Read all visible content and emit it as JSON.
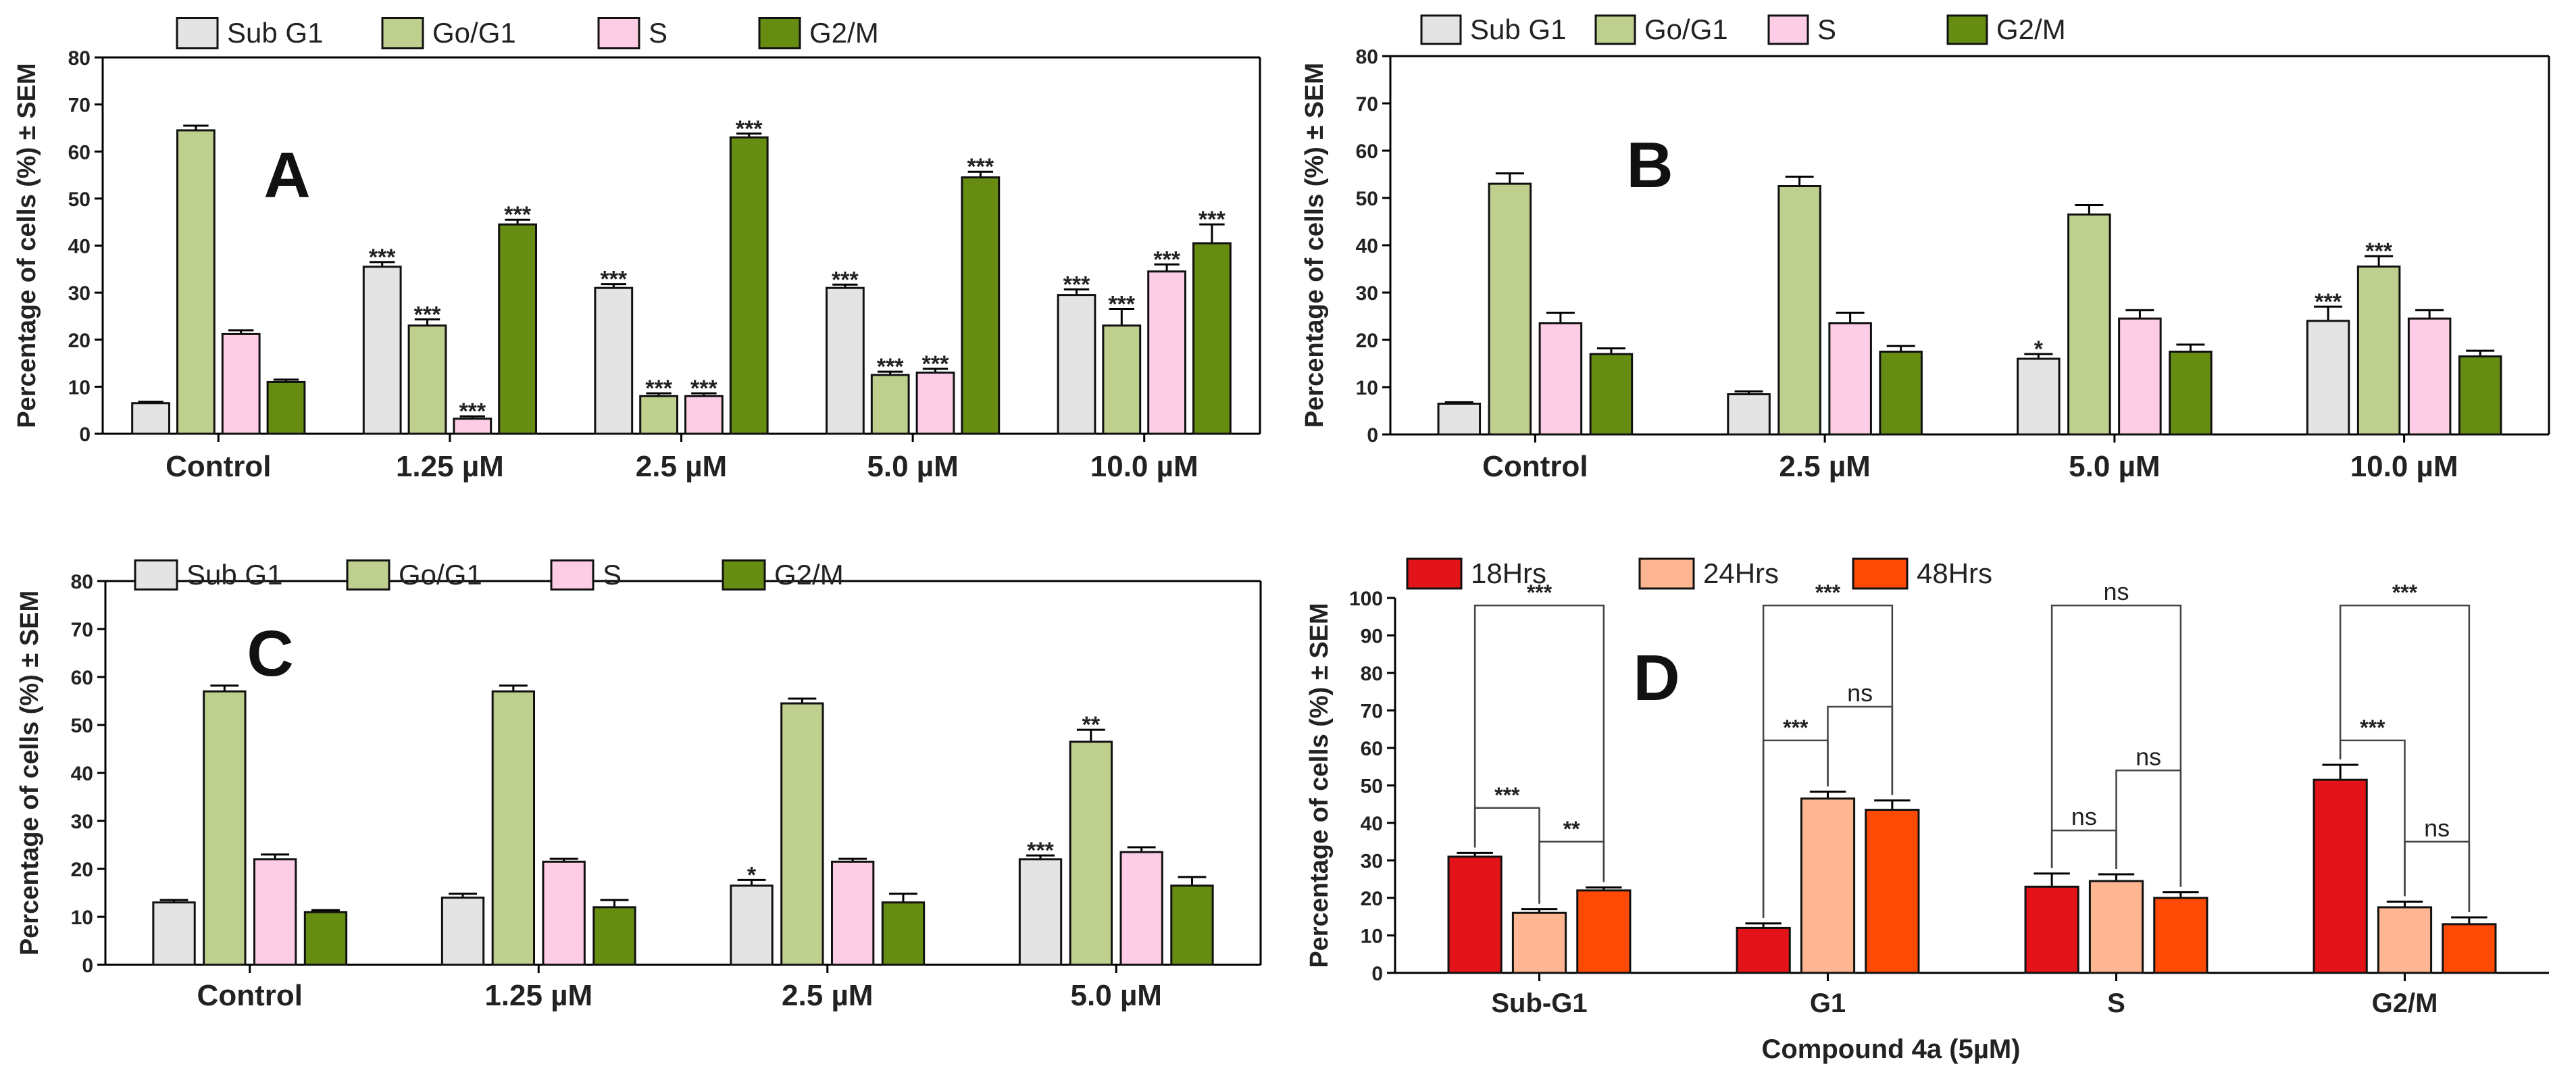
{
  "colors": {
    "sub_g1": "#e4e4e4",
    "go_g1": "#bfcf8e",
    "s": "#fccde4",
    "g2m": "#668d12",
    "h18": "#e31419",
    "h24": "#fdb691",
    "h48": "#ff4a06"
  },
  "chart_data": [
    {
      "id": "A",
      "type": "bar",
      "panel_label": "A",
      "ylabel": "Percentage of cells (%) ± SEM",
      "ylim": [
        0,
        80
      ],
      "yticks": [
        0,
        10,
        20,
        30,
        40,
        50,
        60,
        70,
        80
      ],
      "categories": [
        "Control",
        "1.25 µM",
        "2.5 µM",
        "5.0 µM",
        "10.0 µM"
      ],
      "legend": [
        "Sub G1",
        "Go/G1",
        "S",
        "G2/M"
      ],
      "series": [
        {
          "name": "Sub G1",
          "color_key": "sub_g1",
          "values": [
            6.5,
            35.5,
            31,
            31,
            29.5
          ],
          "errors": [
            0.3,
            1,
            0.8,
            0.7,
            1.2
          ],
          "sig": [
            "",
            "***",
            "***",
            "***",
            "***"
          ]
        },
        {
          "name": "Go/G1",
          "color_key": "go_g1",
          "values": [
            64.5,
            23,
            8,
            12.5,
            23
          ],
          "errors": [
            1,
            1.3,
            0.6,
            0.7,
            3.5
          ],
          "sig": [
            "",
            "***",
            "***",
            "***",
            "***"
          ]
        },
        {
          "name": "S",
          "color_key": "s",
          "values": [
            21.2,
            3.2,
            8,
            13,
            34.5
          ],
          "errors": [
            0.8,
            0.5,
            0.6,
            0.8,
            1.5
          ],
          "sig": [
            "",
            "***",
            "***",
            "***",
            "***"
          ]
        },
        {
          "name": "G2/M",
          "color_key": "g2m",
          "values": [
            11,
            44.5,
            63,
            54.5,
            40.5
          ],
          "errors": [
            0.5,
            1,
            0.8,
            1.2,
            4
          ],
          "sig": [
            "",
            "***",
            "***",
            "***",
            "***"
          ]
        }
      ]
    },
    {
      "id": "B",
      "type": "bar",
      "panel_label": "B",
      "ylabel": "Percentage of cells (%) ± SEM",
      "ylim": [
        0,
        80
      ],
      "yticks": [
        0,
        10,
        20,
        30,
        40,
        50,
        60,
        70,
        80
      ],
      "categories": [
        "Control",
        "2.5 µM",
        "5.0 µM",
        "10.0 µM"
      ],
      "legend": [
        "Sub G1",
        "Go/G1",
        "S",
        "G2/M"
      ],
      "series": [
        {
          "name": "Sub G1",
          "color_key": "sub_g1",
          "values": [
            6.5,
            8.5,
            16,
            24
          ],
          "errors": [
            0.3,
            0.6,
            1,
            3
          ],
          "sig": [
            "",
            "",
            "*",
            "***"
          ]
        },
        {
          "name": "Go/G1",
          "color_key": "go_g1",
          "values": [
            53,
            52.5,
            46.5,
            35.5
          ],
          "errors": [
            2.2,
            2,
            2,
            2.2
          ],
          "sig": [
            "",
            "",
            "",
            "***"
          ]
        },
        {
          "name": "S",
          "color_key": "s",
          "values": [
            23.5,
            23.5,
            24.5,
            24.5
          ],
          "errors": [
            2.2,
            2.2,
            1.8,
            1.8
          ],
          "sig": [
            "",
            "",
            "",
            ""
          ]
        },
        {
          "name": "G2/M",
          "color_key": "g2m",
          "values": [
            17,
            17.5,
            17.5,
            16.5
          ],
          "errors": [
            1.2,
            1.2,
            1.5,
            1.2
          ],
          "sig": [
            "",
            "",
            "",
            ""
          ]
        }
      ]
    },
    {
      "id": "C",
      "type": "bar",
      "panel_label": "C",
      "ylabel": "Percentage of cells (%) ± SEM",
      "ylim": [
        0,
        80
      ],
      "yticks": [
        0,
        10,
        20,
        30,
        40,
        50,
        60,
        70,
        80
      ],
      "categories": [
        "Control",
        "1.25 µM",
        "2.5 µM",
        "5.0 µM"
      ],
      "legend": [
        "Sub G1",
        "Go/G1",
        "S",
        "G2/M"
      ],
      "series": [
        {
          "name": "Sub G1",
          "color_key": "sub_g1",
          "values": [
            13,
            14,
            16.5,
            22
          ],
          "errors": [
            0.5,
            0.8,
            1.2,
            0.8
          ],
          "sig": [
            "",
            "",
            "*",
            "***"
          ]
        },
        {
          "name": "Go/G1",
          "color_key": "go_g1",
          "values": [
            57,
            57,
            54.5,
            46.5
          ],
          "errors": [
            1.2,
            1.2,
            1,
            2.5
          ],
          "sig": [
            "",
            "",
            "",
            "**"
          ]
        },
        {
          "name": "S",
          "color_key": "s",
          "values": [
            22,
            21.5,
            21.5,
            23.5
          ],
          "errors": [
            1,
            0.6,
            0.6,
            1
          ],
          "sig": [
            "",
            "",
            "",
            ""
          ]
        },
        {
          "name": "G2/M",
          "color_key": "g2m",
          "values": [
            11,
            12,
            13,
            16.5
          ],
          "errors": [
            0.4,
            1.5,
            1.8,
            1.8
          ],
          "sig": [
            "",
            "",
            "",
            ""
          ]
        }
      ]
    },
    {
      "id": "D",
      "type": "bar",
      "panel_label": "D",
      "ylabel": "Percentage of cells (%) ± SEM",
      "xlabel": "Compound 4a (5µM)",
      "ylim": [
        0,
        100
      ],
      "yticks": [
        0,
        10,
        20,
        30,
        40,
        50,
        60,
        70,
        80,
        90,
        100
      ],
      "categories": [
        "Sub-G1",
        "G1",
        "S",
        "G2/M"
      ],
      "legend": [
        "18Hrs",
        "24Hrs",
        "48Hrs"
      ],
      "series": [
        {
          "name": "18Hrs",
          "color_key": "h18",
          "values": [
            31,
            12,
            23,
            51.5
          ],
          "errors": [
            1,
            1.2,
            3.5,
            4
          ]
        },
        {
          "name": "24Hrs",
          "color_key": "h24",
          "values": [
            16,
            46.5,
            24.5,
            17.5
          ],
          "errors": [
            1,
            1.8,
            1.8,
            1.5
          ]
        },
        {
          "name": "48Hrs",
          "color_key": "h48",
          "values": [
            22,
            43.5,
            20,
            13
          ],
          "errors": [
            0.8,
            2.5,
            1.5,
            1.8
          ]
        }
      ],
      "comparisons": [
        {
          "category": 0,
          "from": 0,
          "to": 2,
          "label": "***",
          "level": 98
        },
        {
          "category": 0,
          "from": 0,
          "to": 1,
          "label": "***",
          "level": 44
        },
        {
          "category": 0,
          "from": 1,
          "to": 2,
          "label": "**",
          "level": 35
        },
        {
          "category": 1,
          "from": 0,
          "to": 2,
          "label": "***",
          "level": 98
        },
        {
          "category": 1,
          "from": 0,
          "to": 1,
          "label": "***",
          "level": 62
        },
        {
          "category": 1,
          "from": 1,
          "to": 2,
          "label": "ns",
          "level": 71
        },
        {
          "category": 2,
          "from": 0,
          "to": 2,
          "label": "ns",
          "level": 98
        },
        {
          "category": 2,
          "from": 0,
          "to": 1,
          "label": "ns",
          "level": 38
        },
        {
          "category": 2,
          "from": 1,
          "to": 2,
          "label": "ns",
          "level": 54
        },
        {
          "category": 3,
          "from": 0,
          "to": 2,
          "label": "***",
          "level": 98
        },
        {
          "category": 3,
          "from": 0,
          "to": 1,
          "label": "***",
          "level": 62
        },
        {
          "category": 3,
          "from": 1,
          "to": 2,
          "label": "ns",
          "level": 35
        }
      ]
    }
  ]
}
